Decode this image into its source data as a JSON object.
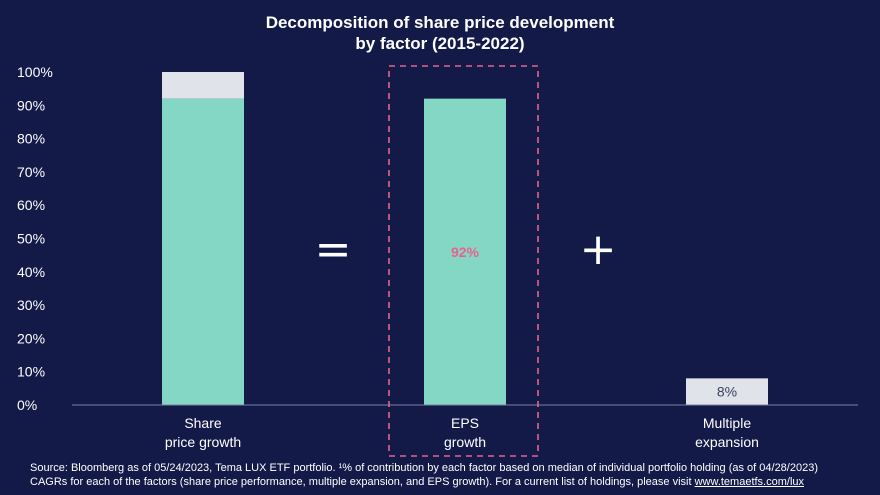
{
  "title": {
    "line1": "Decomposition of share price development",
    "line2": "by factor (2015-2022)"
  },
  "chart_data": {
    "type": "bar",
    "categories": [
      [
        "Share",
        "price growth"
      ],
      [
        "EPS",
        "growth"
      ],
      [
        "Multiple",
        "expansion"
      ]
    ],
    "series": [
      {
        "values": [
          92,
          92,
          0
        ],
        "color": "#84d7c5"
      },
      {
        "values": [
          8,
          0,
          8
        ],
        "color": "#e0e4ea"
      }
    ],
    "data_labels": [
      "",
      "92%",
      "8%"
    ],
    "operators": [
      "=",
      "+"
    ],
    "yticks": [
      "0%",
      "10%",
      "20%",
      "30%",
      "40%",
      "50%",
      "60%",
      "70%",
      "80%",
      "90%",
      "100%"
    ],
    "ylim": [
      0,
      100
    ],
    "grid": false,
    "highlight": {
      "category_index": 1,
      "style": "dashed",
      "color": "#e8638c"
    }
  },
  "footnote": {
    "line1": "Source: Bloomberg as of 05/24/2023, Tema LUX ETF portfolio. ¹% of contribution by each factor based on median of individual portfolio holding (as of 04/28/2023)",
    "line2": "CAGRs for each of the factors (share price performance, multiple expansion, and EPS growth). For a current list of holdings, please visit ",
    "link": "www.temaetfs.com/lux"
  }
}
